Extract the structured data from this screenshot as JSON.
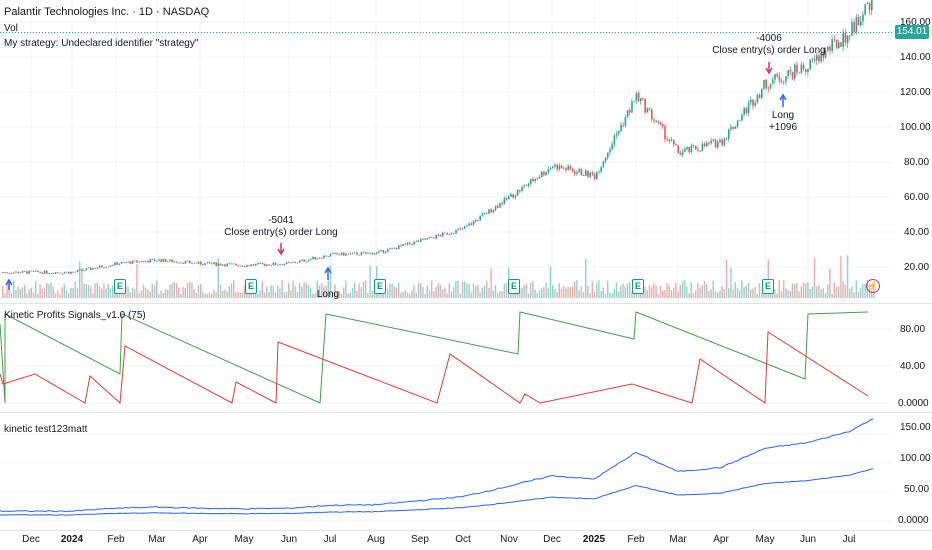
{
  "main_legend": {
    "title": "Palantir Technologies Inc. · 1D · NASDAQ",
    "volume": "Vol",
    "strategy": "My strategy: Undeclared identifier \"strategy\""
  },
  "last_price": "154.01",
  "price_axis": [
    "160.00",
    "140.00",
    "120.00",
    "100.00",
    "80.00",
    "60.00",
    "40.00",
    "20.00"
  ],
  "annotations": {
    "close1_value": "-5041",
    "close1_text": "Close entry(s) order Long",
    "close2_value": "-4006",
    "close2_text": "Close entry(s) order Long",
    "long1_text": "Long",
    "long2_text": "Long",
    "long2_value": "+1096"
  },
  "earnings_marker": "E",
  "flash_icon": "lightning-icon",
  "indicator1": {
    "name": "Kinetic Profits Signals_v1.0 (75)",
    "axis": [
      "80.00",
      "40.00",
      "0.0000"
    ],
    "green_color": "#43a047",
    "red_color": "#e53935"
  },
  "indicator2": {
    "name": "kinetic test123matt",
    "axis": [
      "150.00",
      "100.00",
      "50.00",
      "0.0000"
    ],
    "line_color": "#2962ff"
  },
  "time_axis": [
    "Dec",
    "2024",
    "Feb",
    "Mar",
    "Apr",
    "May",
    "Jun",
    "Jul",
    "Aug",
    "Sep",
    "Oct",
    "Nov",
    "Dec",
    "2025",
    "Feb",
    "Mar",
    "Apr",
    "May",
    "Jun",
    "Jul"
  ],
  "colors": {
    "up": "#26a69a",
    "down": "#ef5350",
    "accent": "#2962ff",
    "grid": "#f0f3fa"
  },
  "chart_data": {
    "type": "candlestick",
    "ylim": [
      0,
      162
    ],
    "close_series": [
      {
        "month": "Dec",
        "value": 17
      },
      {
        "month": "2024",
        "value": 17
      },
      {
        "month": "Feb",
        "value": 22
      },
      {
        "month": "Mar",
        "value": 24
      },
      {
        "month": "Apr",
        "value": 22
      },
      {
        "month": "May",
        "value": 21
      },
      {
        "month": "Jun",
        "value": 22
      },
      {
        "month": "Jul",
        "value": 27
      },
      {
        "month": "Aug",
        "value": 28
      },
      {
        "month": "Sep",
        "value": 35
      },
      {
        "month": "Oct",
        "value": 42
      },
      {
        "month": "Nov",
        "value": 60
      },
      {
        "month": "Dec",
        "value": 78
      },
      {
        "month": "2025",
        "value": 72
      },
      {
        "month": "Feb",
        "value": 118
      },
      {
        "month": "Mar",
        "value": 85
      },
      {
        "month": "Apr",
        "value": 92
      },
      {
        "month": "May",
        "value": 125
      },
      {
        "month": "Jun",
        "value": 135
      },
      {
        "month": "Jul",
        "value": 154
      }
    ]
  }
}
